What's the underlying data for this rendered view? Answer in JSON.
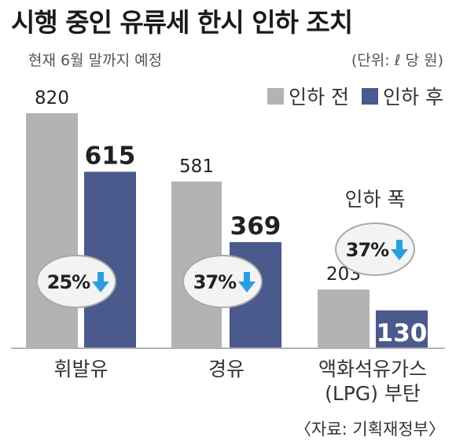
{
  "title": "시행 중인 유류세 한시 인하 조치",
  "subtitle": "현재 6월 말까지 예정",
  "unit": "(단위: ℓ 당 원)",
  "legend": {
    "before": "인하 전",
    "after": "인하 후"
  },
  "cut_label": "인하 폭",
  "source": "〈자료: 기획재정부〉",
  "colors": {
    "before": "#b3b3b3",
    "after": "#4a5a8c",
    "arrow": "#2a9fe0",
    "oval": "#f3f3f3"
  },
  "chart_data": {
    "type": "bar",
    "categories": [
      "휘발유",
      "경유",
      "액화석유가스 (LPG) 부탄"
    ],
    "category_lines": [
      [
        "휘발유"
      ],
      [
        "경유"
      ],
      [
        "액화석유가스",
        "(LPG) 부탄"
      ]
    ],
    "series": [
      {
        "name": "인하 전",
        "values": [
          820,
          581,
          203
        ]
      },
      {
        "name": "인하 후",
        "values": [
          615,
          369,
          130
        ]
      }
    ],
    "value_labels_before": [
      "820",
      "581",
      "203"
    ],
    "value_labels_after": [
      "615",
      "369",
      "130"
    ],
    "cut_rate": [
      "25%",
      "37%",
      "37%"
    ],
    "title": "시행 중인 유류세 한시 인하 조치",
    "ylim": [
      0,
      820
    ]
  }
}
